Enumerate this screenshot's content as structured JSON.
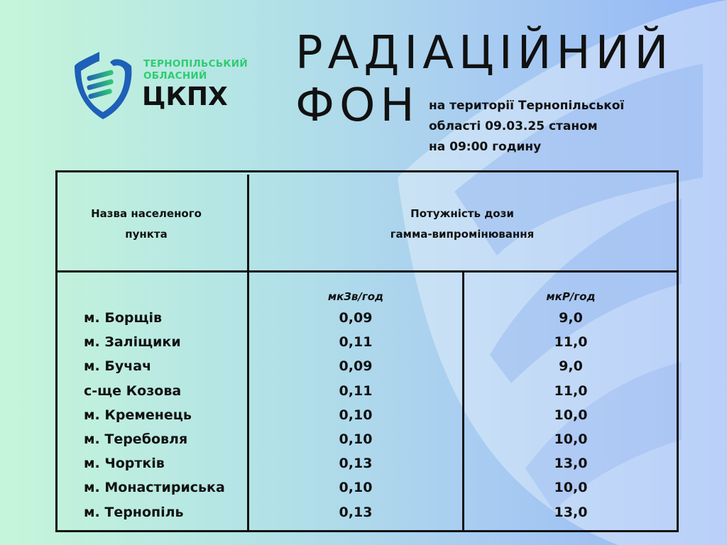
{
  "logo": {
    "line1": "ТЕРНОПІЛЬСЬКИЙ",
    "line2": "ОБЛАСНИЙ",
    "line3": "ЦКПХ"
  },
  "title": {
    "line1": "РАДІАЦІЙНИЙ",
    "line2": "ФОН"
  },
  "subtitle": {
    "line1": "на території Тернопільської",
    "line2": "області 09.03.25 станом",
    "line3": "на 09:00 годину"
  },
  "table": {
    "header_place": {
      "line1": "Назва населеного",
      "line2": "пункта"
    },
    "header_dose": {
      "line1": "Потужність дози",
      "line2": "гамма-випромінювання"
    },
    "unit1": "мкЗв/год",
    "unit2": "мкР/год",
    "rows": [
      {
        "place": "м. Борщів",
        "usv": "0,09",
        "ur": "9,0"
      },
      {
        "place": "м. Заліщики",
        "usv": "0,11",
        "ur": "11,0"
      },
      {
        "place": "м. Бучач",
        "usv": "0,09",
        "ur": "9,0"
      },
      {
        "place": "с-ще  Козова",
        "usv": "0,11",
        "ur": "11,0"
      },
      {
        "place": "м. Кременець",
        "usv": "0,10",
        "ur": "10,0"
      },
      {
        "place": "м. Теребовля",
        "usv": "0,10",
        "ur": "10,0"
      },
      {
        "place": "м. Чортків",
        "usv": "0,13",
        "ur": "13,0"
      },
      {
        "place": "м. Монастириська",
        "usv": "0,10",
        "ur": "10,0"
      },
      {
        "place": "м. Тернопіль",
        "usv": "0,13",
        "ur": "13,0"
      }
    ]
  },
  "colors": {
    "logo_green": "#2ecc71",
    "logo_blue": "#1e5fb8",
    "text": "#111111"
  }
}
